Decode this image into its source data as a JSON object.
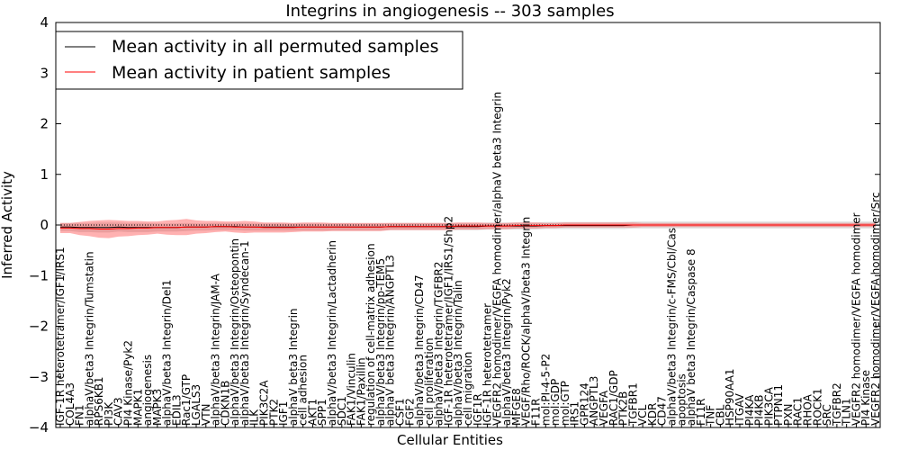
{
  "chart_data": {
    "type": "line",
    "title": "Integrins in angiogenesis -- 303 samples",
    "xlabel": "Cellular Entities",
    "ylabel": "Inferred Activity",
    "ylim": [
      -4,
      4
    ],
    "yticks": [
      -4,
      -3,
      -2,
      -1,
      0,
      1,
      2,
      3,
      4
    ],
    "legend": {
      "position": "top-left",
      "entries": [
        {
          "name": "Mean activity in all permuted samples",
          "color": "#000000"
        },
        {
          "name": "Mean activity in patient samples",
          "color": "#ff0000"
        }
      ]
    },
    "categories": [
      "IGF-1R heterotetramer/IGF1/IRS1",
      "COL4A3",
      "FN1",
      "alphaV/beta3 Integrin/Tumstatin",
      "RPS6KB1",
      "PI3K",
      "CAV3",
      "PI4 Kinase/Pyk2",
      "MAPK1",
      "angiogenesis",
      "MAPK3",
      "alphaV/beta3 Integrin/Del1",
      "EDIL3",
      "Rac1/GTP",
      "LGALS3",
      "VTN",
      "alphaV/beta3 Integrin/JAM-A",
      "CDKN1B",
      "alphaV/beta3 Integrin/Osteopontin",
      "alphaV/beta3 Integrin/Syndecan-1",
      "ILK",
      "PIK3C2A",
      "PTK2",
      "IGF1",
      "alphaV beta3 Integrin",
      "cell adhesion",
      "AKT1",
      "SPP1",
      "alphaV/beta3 Integrin/Lactadherin",
      "SDC1",
      "FAK1/Vinculin",
      "FAK1/Paxillin",
      "regulation of cell-matrix adhesion",
      "alphaV/beta3 Integrin/pp-TEM5",
      "alphaV beta3 Integrin/ANGPTL3",
      "CSF1",
      "FGF2",
      "alphaV/beta3 Integrin/CD47",
      "cell proliferation",
      "alphaV/beta3 Integrin/TGFBR2",
      "IGF-1R heterotetramer/IGF1/IRS1/Shp2",
      "alphaV/beta3 Integrin/Talin",
      "cell migration",
      "IGF1R",
      "IGF-1R heterotetramer",
      "VEGFR2 homodimer/VEGFA homodimer/alphaV beta3 Integrin",
      "alphaV/beta3 Integrin/Pyk2",
      "MFGE8",
      "VEGF/Rho/ROCK/alphaV/beta3 Integrin",
      "F11R",
      "mol:PI-4-5-P2",
      "mol:GDP",
      "mol:GTP",
      "IRS1",
      "GPR124",
      "ANGPTL3",
      "VEGFA",
      "RAC1/GDP",
      "PTK2B",
      "TGFBR1",
      "VCL",
      "KDR",
      "CD47",
      "alphaV/beta3 Integrin/c-FMS/Cbl/Cas",
      "apoptosis",
      "alphaV beta3 Integrin/Caspase 8",
      "F11R",
      "TNF",
      "CBL",
      "HSP90AA1",
      "ITGAV",
      "PI4KA",
      "PI4KB",
      "PIK3CA",
      "PTPN11",
      "PXN",
      "RAC1",
      "RHOA",
      "ROCK1",
      "SRC",
      "TGFBR2",
      "TLN1",
      "VEGFR2 homodimer/VEGFA homodimer",
      "PI4 Kinase",
      "VEGFR2 homodimer/VEGFA homodimer/Src"
    ],
    "series": [
      {
        "name": "Mean activity in all permuted samples",
        "color": "#000000",
        "values": [
          -0.04,
          -0.04,
          -0.05,
          -0.05,
          -0.05,
          -0.05,
          -0.04,
          -0.05,
          -0.05,
          -0.05,
          -0.05,
          -0.05,
          -0.05,
          -0.04,
          -0.04,
          -0.04,
          -0.03,
          -0.03,
          -0.03,
          -0.04,
          -0.04,
          -0.04,
          -0.04,
          -0.04,
          -0.04,
          -0.04,
          -0.04,
          -0.04,
          -0.04,
          -0.04,
          -0.04,
          -0.04,
          -0.04,
          -0.04,
          -0.03,
          -0.03,
          -0.03,
          -0.03,
          -0.03,
          -0.03,
          -0.03,
          -0.03,
          -0.03,
          -0.03,
          -0.02,
          -0.02,
          -0.02,
          -0.02,
          -0.02,
          -0.02,
          -0.01,
          -0.01,
          -0.01,
          -0.01,
          -0.01,
          -0.01,
          -0.01,
          -0.01,
          -0.01,
          0.0,
          0.0,
          0.0,
          0.0,
          0.0,
          0.0,
          0.0,
          0.0,
          0.0,
          0.0,
          0.0,
          0.0,
          0.0,
          0.0,
          0.0,
          0.0,
          0.0,
          0.0,
          0.0,
          0.0,
          0.0,
          0.0,
          0.0,
          0.0,
          0.0,
          0.0
        ],
        "band_halfwidth": [
          0.08,
          0.08,
          0.09,
          0.09,
          0.1,
          0.1,
          0.09,
          0.09,
          0.09,
          0.09,
          0.08,
          0.08,
          0.08,
          0.08,
          0.07,
          0.07,
          0.07,
          0.07,
          0.07,
          0.07,
          0.07,
          0.07,
          0.07,
          0.07,
          0.07,
          0.07,
          0.07,
          0.07,
          0.07,
          0.07,
          0.07,
          0.07,
          0.07,
          0.07,
          0.07,
          0.07,
          0.07,
          0.07,
          0.07,
          0.07,
          0.07,
          0.07,
          0.07,
          0.07,
          0.07,
          0.07,
          0.07,
          0.07,
          0.07,
          0.07,
          0.07,
          0.07,
          0.07,
          0.07,
          0.07,
          0.07,
          0.07,
          0.07,
          0.07,
          0.07,
          0.07,
          0.07,
          0.07,
          0.07,
          0.07,
          0.07,
          0.07,
          0.07,
          0.07,
          0.07,
          0.07,
          0.07,
          0.07,
          0.07,
          0.07,
          0.07,
          0.07,
          0.07,
          0.07,
          0.07,
          0.07,
          0.07,
          0.07,
          0.07,
          0.07
        ]
      },
      {
        "name": "Mean activity in patient samples",
        "color": "#ff0000",
        "values": [
          -0.06,
          -0.06,
          -0.07,
          -0.07,
          -0.08,
          -0.08,
          -0.07,
          -0.07,
          -0.06,
          -0.06,
          -0.05,
          -0.05,
          -0.05,
          -0.04,
          -0.04,
          -0.04,
          -0.03,
          -0.03,
          -0.04,
          -0.04,
          -0.04,
          -0.05,
          -0.05,
          -0.05,
          -0.05,
          -0.04,
          -0.04,
          -0.04,
          -0.04,
          -0.04,
          -0.04,
          -0.04,
          -0.04,
          -0.04,
          -0.03,
          -0.03,
          -0.03,
          -0.03,
          -0.03,
          -0.03,
          -0.03,
          -0.02,
          -0.02,
          -0.02,
          -0.02,
          -0.02,
          -0.02,
          -0.01,
          -0.01,
          -0.01,
          -0.01,
          -0.01,
          0.0,
          0.0,
          0.0,
          0.0,
          0.0,
          0.0,
          0.0,
          0.0,
          0.0,
          0.0,
          0.0,
          0.0,
          0.0,
          0.0,
          0.0,
          0.0,
          0.0,
          0.0,
          0.0,
          0.0,
          0.0,
          0.0,
          0.0,
          0.0,
          0.0,
          0.0,
          0.0,
          0.0,
          0.0,
          0.0,
          0.0,
          0.0,
          0.0
        ],
        "band_halfwidth": [
          0.1,
          0.1,
          0.13,
          0.15,
          0.17,
          0.18,
          0.16,
          0.15,
          0.14,
          0.13,
          0.12,
          0.14,
          0.15,
          0.16,
          0.13,
          0.12,
          0.11,
          0.1,
          0.11,
          0.12,
          0.11,
          0.1,
          0.1,
          0.1,
          0.09,
          0.09,
          0.09,
          0.09,
          0.08,
          0.08,
          0.08,
          0.08,
          0.08,
          0.08,
          0.07,
          0.07,
          0.07,
          0.07,
          0.07,
          0.07,
          0.07,
          0.07,
          0.07,
          0.07,
          0.06,
          0.06,
          0.06,
          0.06,
          0.06,
          0.06,
          0.05,
          0.05,
          0.05,
          0.05,
          0.05,
          0.05,
          0.05,
          0.05,
          0.05,
          0.05,
          0.04,
          0.04,
          0.04,
          0.04,
          0.04,
          0.04,
          0.04,
          0.04,
          0.04,
          0.04,
          0.04,
          0.04,
          0.04,
          0.04,
          0.04,
          0.04,
          0.04,
          0.04,
          0.04,
          0.04,
          0.04,
          0.04,
          0.04,
          0.04,
          0.04
        ]
      }
    ]
  }
}
